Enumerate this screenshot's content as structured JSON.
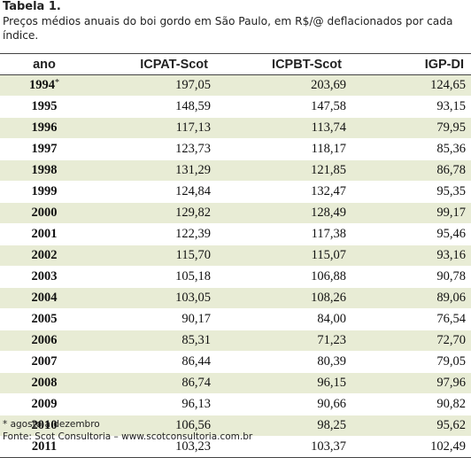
{
  "caption": {
    "title": "Tabela 1.",
    "description": "Preços médios anuais do boi gordo em São Paulo, em R$/@ deflacionados por cada índice."
  },
  "table": {
    "headers": [
      "ano",
      "ICPAT-Scot",
      "ICPBT-Scot",
      "IGP-DI"
    ],
    "rows": [
      {
        "year": "1994",
        "mark": "*",
        "icpat": "197,05",
        "icpbt": "203,69",
        "igp": "124,65"
      },
      {
        "year": "1995",
        "mark": "",
        "icpat": "148,59",
        "icpbt": "147,58",
        "igp": "93,15"
      },
      {
        "year": "1996",
        "mark": "",
        "icpat": "117,13",
        "icpbt": "113,74",
        "igp": "79,95"
      },
      {
        "year": "1997",
        "mark": "",
        "icpat": "123,73",
        "icpbt": "118,17",
        "igp": "85,36"
      },
      {
        "year": "1998",
        "mark": "",
        "icpat": "131,29",
        "icpbt": "121,85",
        "igp": "86,78"
      },
      {
        "year": "1999",
        "mark": "",
        "icpat": "124,84",
        "icpbt": "132,47",
        "igp": "95,35"
      },
      {
        "year": "2000",
        "mark": "",
        "icpat": "129,82",
        "icpbt": "128,49",
        "igp": "99,17"
      },
      {
        "year": "2001",
        "mark": "",
        "icpat": "122,39",
        "icpbt": "117,38",
        "igp": "95,46"
      },
      {
        "year": "2002",
        "mark": "",
        "icpat": "115,70",
        "icpbt": "115,07",
        "igp": "93,16"
      },
      {
        "year": "2003",
        "mark": "",
        "icpat": "105,18",
        "icpbt": "106,88",
        "igp": "90,78"
      },
      {
        "year": "2004",
        "mark": "",
        "icpat": "103,05",
        "icpbt": "108,26",
        "igp": "89,06"
      },
      {
        "year": "2005",
        "mark": "",
        "icpat": "90,17",
        "icpbt": "84,00",
        "igp": "76,54"
      },
      {
        "year": "2006",
        "mark": "",
        "icpat": "85,31",
        "icpbt": "71,23",
        "igp": "72,70"
      },
      {
        "year": "2007",
        "mark": "",
        "icpat": "86,44",
        "icpbt": "80,39",
        "igp": "79,05"
      },
      {
        "year": "2008",
        "mark": "",
        "icpat": "86,74",
        "icpbt": "96,15",
        "igp": "97,96"
      },
      {
        "year": "2009",
        "mark": "",
        "icpat": "96,13",
        "icpbt": "90,66",
        "igp": "90,82"
      },
      {
        "year": "2010",
        "mark": "",
        "icpat": "106,56",
        "icpbt": "98,25",
        "igp": "95,62"
      },
      {
        "year": "2011",
        "mark": "",
        "icpat": "103,23",
        "icpbt": "103,37",
        "igp": "102,49"
      }
    ]
  },
  "notes": {
    "footnote": "* agosto a dezembro",
    "source": "Fonte: Scot Consultoria – www.scotconsultoria.com.br"
  },
  "colors": {
    "stripe": "#e8ecd5",
    "rule": "#444444"
  }
}
